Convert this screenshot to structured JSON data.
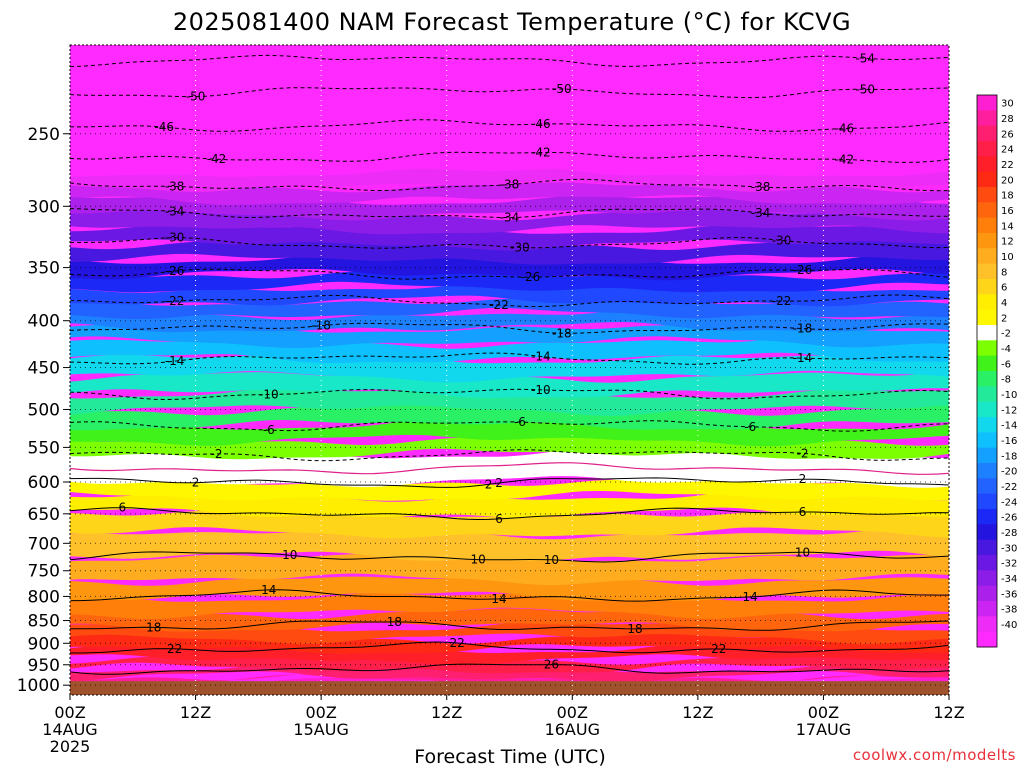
{
  "title": "2025081400 NAM Forecast Temperature (°C) for KCVG",
  "xaxis_title": "Forecast Time (UTC)",
  "credit": "coolwx.com/modelts",
  "chart_data": {
    "type": "heatmap",
    "title": "2025081400 NAM Forecast Temperature (°C) for KCVG",
    "xlabel": "Forecast Time (UTC)",
    "ylabel": "",
    "x_ticks": [
      {
        "hour": 0,
        "lines": [
          "00Z",
          "14AUG",
          "2025"
        ]
      },
      {
        "hour": 12,
        "lines": [
          "12Z"
        ]
      },
      {
        "hour": 24,
        "lines": [
          "00Z",
          "15AUG"
        ]
      },
      {
        "hour": 36,
        "lines": [
          "12Z"
        ]
      },
      {
        "hour": 48,
        "lines": [
          "00Z",
          "16AUG"
        ]
      },
      {
        "hour": 60,
        "lines": [
          "12Z"
        ]
      },
      {
        "hour": 72,
        "lines": [
          "00Z",
          "17AUG"
        ]
      },
      {
        "hour": 84,
        "lines": [
          "12Z"
        ]
      }
    ],
    "xlim": [
      0,
      84
    ],
    "y_ticks": [
      250,
      300,
      350,
      400,
      450,
      500,
      550,
      600,
      650,
      700,
      750,
      800,
      850,
      900,
      950,
      1000
    ],
    "ylim_hPa": [
      200,
      1025
    ],
    "y_scale": "log-pressure (reversed)",
    "ground_below_hPa": 990,
    "grid": true,
    "profile": [
      {
        "p": 200,
        "t": -56
      },
      {
        "p": 220,
        "t": -51
      },
      {
        "p": 240,
        "t": -47
      },
      {
        "p": 260,
        "t": -43
      },
      {
        "p": 280,
        "t": -39
      },
      {
        "p": 300,
        "t": -35
      },
      {
        "p": 330,
        "t": -30
      },
      {
        "p": 350,
        "t": -27
      },
      {
        "p": 375,
        "t": -23
      },
      {
        "p": 400,
        "t": -19
      },
      {
        "p": 430,
        "t": -15
      },
      {
        "p": 470,
        "t": -11
      },
      {
        "p": 510,
        "t": -7
      },
      {
        "p": 550,
        "t": -3
      },
      {
        "p": 580,
        "t": 0
      },
      {
        "p": 610,
        "t": 3
      },
      {
        "p": 650,
        "t": 6
      },
      {
        "p": 700,
        "t": 9
      },
      {
        "p": 750,
        "t": 11
      },
      {
        "p": 800,
        "t": 14
      },
      {
        "p": 850,
        "t": 17
      },
      {
        "p": 900,
        "t": 21
      },
      {
        "p": 950,
        "t": 25
      },
      {
        "p": 990,
        "t": 29
      }
    ],
    "contour_labels": [
      {
        "value": "-54",
        "hour": 76
      },
      {
        "value": "-50",
        "hour": 12
      },
      {
        "value": "-50",
        "hour": 47
      },
      {
        "value": "-50",
        "hour": 76
      },
      {
        "value": "-46",
        "hour": 9
      },
      {
        "value": "-46",
        "hour": 45
      },
      {
        "value": "-46",
        "hour": 74
      },
      {
        "value": "-42",
        "hour": 14
      },
      {
        "value": "-42",
        "hour": 45
      },
      {
        "value": "-42",
        "hour": 74
      },
      {
        "value": "-38",
        "hour": 10
      },
      {
        "value": "-38",
        "hour": 42
      },
      {
        "value": "-38",
        "hour": 66
      },
      {
        "value": "-34",
        "hour": 10
      },
      {
        "value": "-34",
        "hour": 42
      },
      {
        "value": "-34",
        "hour": 66
      },
      {
        "value": "-30",
        "hour": 10
      },
      {
        "value": "-30",
        "hour": 43
      },
      {
        "value": "-30",
        "hour": 68
      },
      {
        "value": "-26",
        "hour": 10
      },
      {
        "value": "-26",
        "hour": 44
      },
      {
        "value": "-26",
        "hour": 70
      },
      {
        "value": "-22",
        "hour": 10
      },
      {
        "value": "-22",
        "hour": 41
      },
      {
        "value": "-22",
        "hour": 68
      },
      {
        "value": "-18",
        "hour": 24
      },
      {
        "value": "-18",
        "hour": 47
      },
      {
        "value": "-18",
        "hour": 70
      },
      {
        "value": "-14",
        "hour": 10
      },
      {
        "value": "-14",
        "hour": 45
      },
      {
        "value": "-14",
        "hour": 70
      },
      {
        "value": "-10",
        "hour": 19
      },
      {
        "value": "-10",
        "hour": 45
      },
      {
        "value": "-6",
        "hour": 19
      },
      {
        "value": "-6",
        "hour": 43
      },
      {
        "value": "-6",
        "hour": 65
      },
      {
        "value": "-2",
        "hour": 14
      },
      {
        "value": "2",
        "hour": 40
      },
      {
        "value": "-2",
        "hour": 70
      },
      {
        "value": "2",
        "hour": 12
      },
      {
        "value": "2",
        "hour": 41
      },
      {
        "value": "2",
        "hour": 70
      },
      {
        "value": "6",
        "hour": 5
      },
      {
        "value": "6",
        "hour": 41
      },
      {
        "value": "6",
        "hour": 70
      },
      {
        "value": "10",
        "hour": 21
      },
      {
        "value": "10",
        "hour": 39
      },
      {
        "value": "10",
        "hour": 46
      },
      {
        "value": "10",
        "hour": 70
      },
      {
        "value": "14",
        "hour": 19
      },
      {
        "value": "14",
        "hour": 41
      },
      {
        "value": "14",
        "hour": 65
      },
      {
        "value": "18",
        "hour": 8
      },
      {
        "value": "18",
        "hour": 31
      },
      {
        "value": "18",
        "hour": 54
      },
      {
        "value": "22",
        "hour": 10
      },
      {
        "value": "22",
        "hour": 37
      },
      {
        "value": "22",
        "hour": 62
      },
      {
        "value": "26",
        "hour": 46
      }
    ],
    "colorbar": {
      "labels": [
        30,
        28,
        26,
        24,
        22,
        20,
        18,
        16,
        14,
        12,
        10,
        8,
        6,
        4,
        2,
        -2,
        -4,
        -6,
        -8,
        -10,
        -12,
        -14,
        -16,
        -18,
        -20,
        -22,
        -24,
        -26,
        -28,
        -30,
        -32,
        -34,
        -36,
        -38,
        -40
      ],
      "colors": [
        "#ff1fd2",
        "#ff1f9e",
        "#ff1f70",
        "#ff1f48",
        "#ff1f28",
        "#ff2a14",
        "#ff4a10",
        "#ff650c",
        "#ff7f0a",
        "#ff9610",
        "#ffad1e",
        "#ffc12a",
        "#ffd51a",
        "#ffee00",
        "#fff700",
        "#ffffff",
        "#7cff00",
        "#40f21a",
        "#2af065",
        "#22ea9a",
        "#18e8c8",
        "#12d8ee",
        "#0fc0ff",
        "#14a0ff",
        "#1c80ff",
        "#2262ff",
        "#2048ff",
        "#1c28f5",
        "#2414e0",
        "#4818e0",
        "#6c18e4",
        "#8c1ce8",
        "#ac20ec",
        "#cc24f2",
        "#ee2cf8",
        "#ff2aff"
      ]
    }
  }
}
